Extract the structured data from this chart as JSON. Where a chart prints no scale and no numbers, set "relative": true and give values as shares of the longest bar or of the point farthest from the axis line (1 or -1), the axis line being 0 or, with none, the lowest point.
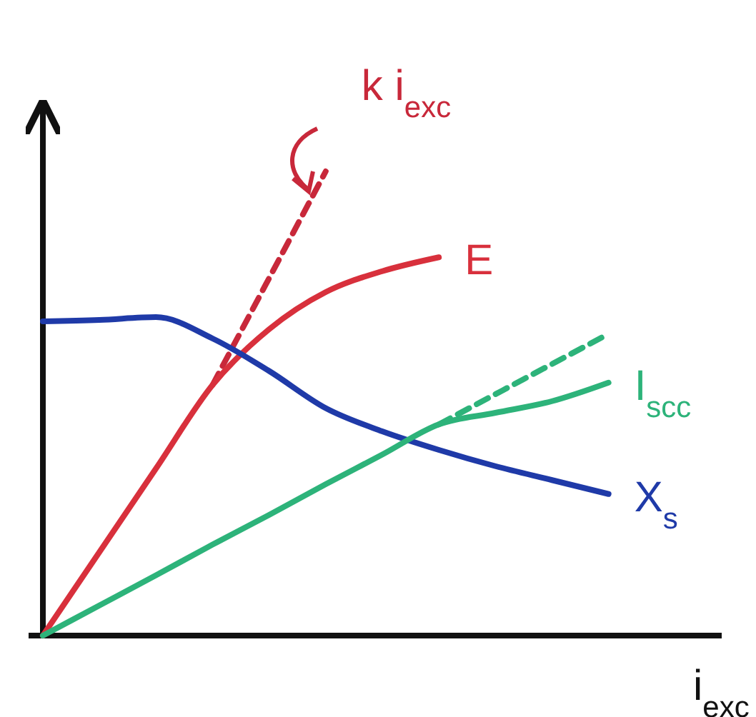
{
  "chart_data": {
    "type": "line",
    "relative": true,
    "xlabel": "i$_{exc}$",
    "marker": "none",
    "categories": [
      null,
      null,
      null,
      null,
      null,
      null,
      null,
      null,
      null,
      null,
      null,
      null,
      null
    ],
    "series": [
      {
        "name": "k i$_{exc}$",
        "color": "#c8283a",
        "line_style": "dashed",
        "values": [
          null,
          null,
          null,
          0.54,
          0.77,
          1,
          null,
          null,
          null,
          null,
          null,
          null,
          null
        ]
      },
      {
        "name": "E",
        "color": "#d8303c",
        "line_style": "solid",
        "values": [
          0,
          0.18,
          0.36,
          0.54,
          0.66,
          0.74,
          0.785,
          0.815,
          null,
          null,
          null,
          null,
          null
        ]
      },
      {
        "name": "X$_{s}$",
        "color": "#1f3aa8",
        "line_style": "solid",
        "values": [
          0.677,
          0.68,
          0.686,
          0.64,
          0.57,
          0.49,
          0.44,
          0.4,
          0.365,
          0.335,
          0.305,
          null,
          null
        ]
      },
      {
        "color": "#2db37a",
        "line_style": "dashed",
        "values": [
          null,
          null,
          null,
          null,
          null,
          null,
          null,
          0.455,
          0.52,
          0.585,
          0.65,
          null,
          null
        ]
      },
      {
        "name": "I$_{scc}$",
        "color": "#2db37a",
        "line_style": "solid",
        "values": [
          0,
          0.065,
          0.13,
          0.196,
          0.26,
          0.326,
          0.39,
          0.455,
          0.48,
          0.505,
          0.545,
          null,
          null
        ]
      }
    ]
  }
}
